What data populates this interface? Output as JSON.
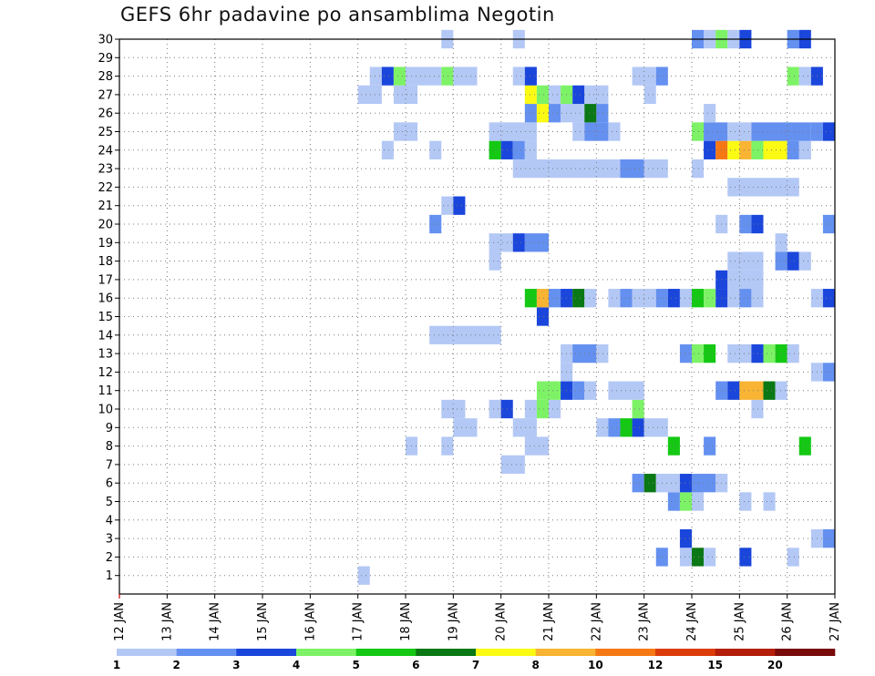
{
  "chart_data": {
    "type": "heatmap",
    "title": "GEFS 6hr padavine po ansamblima Negotin",
    "xlabel": "",
    "ylabel": "",
    "x_ticks": [
      "12 JAN",
      "13 JAN",
      "14 JAN",
      "15 JAN",
      "16 JAN",
      "17 JAN",
      "18 JAN",
      "19 JAN",
      "20 JAN",
      "21 JAN",
      "22 JAN",
      "23 JAN",
      "24 JAN",
      "25 JAN",
      "26 JAN",
      "27 JAN"
    ],
    "y_ticks": [
      "1",
      "2",
      "3",
      "4",
      "5",
      "6",
      "7",
      "8",
      "9",
      "10",
      "11",
      "12",
      "13",
      "14",
      "15",
      "16",
      "17",
      "18",
      "19",
      "20",
      "21",
      "22",
      "23",
      "24",
      "25",
      "26",
      "27",
      "28",
      "29",
      "30"
    ],
    "xlim": [
      12,
      27
    ],
    "ylim": [
      0,
      30
    ],
    "grid": true,
    "legend": {
      "placement": "bottom",
      "labels": [
        "1",
        "2",
        "3",
        "4",
        "5",
        "6",
        "7",
        "8",
        "10",
        "12",
        "15",
        "20"
      ],
      "colors": [
        "#b3c8f5",
        "#6490f0",
        "#1a46dc",
        "#7df266",
        "#14c814",
        "#0a7814",
        "#fafa14",
        "#f8b432",
        "#f57814",
        "#dc3c0a",
        "#b41e0a",
        "#780a0a"
      ]
    },
    "cells": [
      {
        "m": 1,
        "t": 17.0,
        "d": 0.25,
        "c": 1
      },
      {
        "m": 2,
        "t": 23.25,
        "d": 0.25,
        "c": 2
      },
      {
        "m": 2,
        "t": 23.75,
        "d": 0.25,
        "c": 1
      },
      {
        "m": 2,
        "t": 24.0,
        "d": 0.25,
        "c": 6
      },
      {
        "m": 2,
        "t": 24.25,
        "d": 0.25,
        "c": 1
      },
      {
        "m": 2,
        "t": 25.0,
        "d": 0.25,
        "c": 3
      },
      {
        "m": 2,
        "t": 26.0,
        "d": 0.25,
        "c": 1
      },
      {
        "m": 3,
        "t": 23.75,
        "d": 0.25,
        "c": 3
      },
      {
        "m": 3,
        "t": 26.5,
        "d": 0.25,
        "c": 1
      },
      {
        "m": 3,
        "t": 26.75,
        "d": 0.25,
        "c": 2
      },
      {
        "m": 5,
        "t": 23.5,
        "d": 0.25,
        "c": 2
      },
      {
        "m": 5,
        "t": 23.75,
        "d": 0.25,
        "c": 4
      },
      {
        "m": 5,
        "t": 24.0,
        "d": 0.25,
        "c": 1
      },
      {
        "m": 5,
        "t": 25.0,
        "d": 0.25,
        "c": 1
      },
      {
        "m": 5,
        "t": 25.5,
        "d": 0.25,
        "c": 1
      },
      {
        "m": 6,
        "t": 22.75,
        "d": 0.25,
        "c": 2
      },
      {
        "m": 6,
        "t": 23.0,
        "d": 0.25,
        "c": 6
      },
      {
        "m": 6,
        "t": 23.25,
        "d": 0.5,
        "c": 1
      },
      {
        "m": 6,
        "t": 23.75,
        "d": 0.25,
        "c": 3
      },
      {
        "m": 6,
        "t": 24.0,
        "d": 0.5,
        "c": 2
      },
      {
        "m": 6,
        "t": 24.5,
        "d": 0.25,
        "c": 1
      },
      {
        "m": 7,
        "t": 20.0,
        "d": 0.5,
        "c": 1
      },
      {
        "m": 8,
        "t": 18.0,
        "d": 0.25,
        "c": 1
      },
      {
        "m": 8,
        "t": 18.75,
        "d": 0.25,
        "c": 1
      },
      {
        "m": 8,
        "t": 20.5,
        "d": 0.5,
        "c": 1
      },
      {
        "m": 8,
        "t": 23.5,
        "d": 0.25,
        "c": 5
      },
      {
        "m": 8,
        "t": 24.25,
        "d": 0.25,
        "c": 2
      },
      {
        "m": 8,
        "t": 26.25,
        "d": 0.25,
        "c": 5
      },
      {
        "m": 9,
        "t": 19.0,
        "d": 0.5,
        "c": 1
      },
      {
        "m": 9,
        "t": 20.25,
        "d": 0.5,
        "c": 1
      },
      {
        "m": 9,
        "t": 22.0,
        "d": 0.25,
        "c": 1
      },
      {
        "m": 9,
        "t": 22.25,
        "d": 0.25,
        "c": 2
      },
      {
        "m": 9,
        "t": 22.5,
        "d": 0.25,
        "c": 5
      },
      {
        "m": 9,
        "t": 22.75,
        "d": 0.25,
        "c": 3
      },
      {
        "m": 9,
        "t": 23.0,
        "d": 0.5,
        "c": 1
      },
      {
        "m": 10,
        "t": 18.75,
        "d": 0.5,
        "c": 1
      },
      {
        "m": 10,
        "t": 19.75,
        "d": 0.25,
        "c": 1
      },
      {
        "m": 10,
        "t": 20.0,
        "d": 0.25,
        "c": 3
      },
      {
        "m": 10,
        "t": 20.5,
        "d": 0.25,
        "c": 1
      },
      {
        "m": 10,
        "t": 20.75,
        "d": 0.25,
        "c": 4
      },
      {
        "m": 10,
        "t": 21.0,
        "d": 0.25,
        "c": 1
      },
      {
        "m": 10,
        "t": 22.75,
        "d": 0.25,
        "c": 4
      },
      {
        "m": 10,
        "t": 25.25,
        "d": 0.25,
        "c": 1
      },
      {
        "m": 11,
        "t": 20.75,
        "d": 0.5,
        "c": 4
      },
      {
        "m": 11,
        "t": 21.25,
        "d": 0.25,
        "c": 3
      },
      {
        "m": 11,
        "t": 21.5,
        "d": 0.25,
        "c": 2
      },
      {
        "m": 11,
        "t": 21.75,
        "d": 0.25,
        "c": 1
      },
      {
        "m": 11,
        "t": 22.25,
        "d": 0.75,
        "c": 1
      },
      {
        "m": 11,
        "t": 24.5,
        "d": 0.25,
        "c": 2
      },
      {
        "m": 11,
        "t": 24.75,
        "d": 0.25,
        "c": 3
      },
      {
        "m": 11,
        "t": 25.0,
        "d": 0.5,
        "c": 8
      },
      {
        "m": 11,
        "t": 25.5,
        "d": 0.25,
        "c": 6
      },
      {
        "m": 11,
        "t": 25.75,
        "d": 0.25,
        "c": 1
      },
      {
        "m": 12,
        "t": 21.25,
        "d": 0.25,
        "c": 1
      },
      {
        "m": 12,
        "t": 26.5,
        "d": 0.25,
        "c": 1
      },
      {
        "m": 12,
        "t": 26.75,
        "d": 0.25,
        "c": 2
      },
      {
        "m": 13,
        "t": 21.25,
        "d": 0.25,
        "c": 1
      },
      {
        "m": 13,
        "t": 21.5,
        "d": 0.5,
        "c": 2
      },
      {
        "m": 13,
        "t": 22.0,
        "d": 0.25,
        "c": 1
      },
      {
        "m": 13,
        "t": 23.75,
        "d": 0.25,
        "c": 2
      },
      {
        "m": 13,
        "t": 24.0,
        "d": 0.25,
        "c": 4
      },
      {
        "m": 13,
        "t": 24.25,
        "d": 0.25,
        "c": 5
      },
      {
        "m": 13,
        "t": 24.75,
        "d": 0.5,
        "c": 1
      },
      {
        "m": 13,
        "t": 25.25,
        "d": 0.25,
        "c": 3
      },
      {
        "m": 13,
        "t": 25.5,
        "d": 0.25,
        "c": 4
      },
      {
        "m": 13,
        "t": 25.75,
        "d": 0.25,
        "c": 5
      },
      {
        "m": 13,
        "t": 26.0,
        "d": 0.25,
        "c": 1
      },
      {
        "m": 14,
        "t": 18.5,
        "d": 1.5,
        "c": 1
      },
      {
        "m": 15,
        "t": 20.75,
        "d": 0.25,
        "c": 3
      },
      {
        "m": 16,
        "t": 20.5,
        "d": 0.25,
        "c": 5
      },
      {
        "m": 16,
        "t": 20.75,
        "d": 0.25,
        "c": 8
      },
      {
        "m": 16,
        "t": 21.0,
        "d": 0.25,
        "c": 2
      },
      {
        "m": 16,
        "t": 21.25,
        "d": 0.25,
        "c": 3
      },
      {
        "m": 16,
        "t": 21.5,
        "d": 0.25,
        "c": 6
      },
      {
        "m": 16,
        "t": 21.75,
        "d": 0.25,
        "c": 1
      },
      {
        "m": 16,
        "t": 22.25,
        "d": 0.25,
        "c": 1
      },
      {
        "m": 16,
        "t": 22.5,
        "d": 0.25,
        "c": 2
      },
      {
        "m": 16,
        "t": 22.75,
        "d": 0.5,
        "c": 1
      },
      {
        "m": 16,
        "t": 23.25,
        "d": 0.25,
        "c": 2
      },
      {
        "m": 16,
        "t": 23.5,
        "d": 0.25,
        "c": 3
      },
      {
        "m": 16,
        "t": 23.75,
        "d": 0.25,
        "c": 1
      },
      {
        "m": 16,
        "t": 24.0,
        "d": 0.25,
        "c": 5
      },
      {
        "m": 16,
        "t": 24.25,
        "d": 0.25,
        "c": 4
      },
      {
        "m": 16,
        "t": 24.5,
        "d": 0.25,
        "c": 3
      },
      {
        "m": 16,
        "t": 24.75,
        "d": 0.25,
        "c": 1
      },
      {
        "m": 16,
        "t": 25.0,
        "d": 0.25,
        "c": 2
      },
      {
        "m": 16,
        "t": 25.25,
        "d": 0.25,
        "c": 1
      },
      {
        "m": 16,
        "t": 26.5,
        "d": 0.25,
        "c": 1
      },
      {
        "m": 16,
        "t": 26.75,
        "d": 0.25,
        "c": 3
      },
      {
        "m": 17,
        "t": 24.5,
        "d": 0.25,
        "c": 3
      },
      {
        "m": 17,
        "t": 24.75,
        "d": 0.75,
        "c": 1
      },
      {
        "m": 18,
        "t": 19.75,
        "d": 0.25,
        "c": 1
      },
      {
        "m": 18,
        "t": 24.75,
        "d": 0.75,
        "c": 1
      },
      {
        "m": 18,
        "t": 25.75,
        "d": 0.25,
        "c": 2
      },
      {
        "m": 18,
        "t": 26.0,
        "d": 0.25,
        "c": 3
      },
      {
        "m": 18,
        "t": 26.25,
        "d": 0.25,
        "c": 1
      },
      {
        "m": 19,
        "t": 19.75,
        "d": 0.5,
        "c": 1
      },
      {
        "m": 19,
        "t": 20.25,
        "d": 0.25,
        "c": 3
      },
      {
        "m": 19,
        "t": 20.5,
        "d": 0.5,
        "c": 2
      },
      {
        "m": 19,
        "t": 25.75,
        "d": 0.25,
        "c": 1
      },
      {
        "m": 20,
        "t": 18.5,
        "d": 0.25,
        "c": 2
      },
      {
        "m": 20,
        "t": 24.5,
        "d": 0.25,
        "c": 1
      },
      {
        "m": 20,
        "t": 25.0,
        "d": 0.25,
        "c": 2
      },
      {
        "m": 20,
        "t": 25.25,
        "d": 0.25,
        "c": 3
      },
      {
        "m": 20,
        "t": 26.75,
        "d": 0.25,
        "c": 2
      },
      {
        "m": 21,
        "t": 18.75,
        "d": 0.25,
        "c": 1
      },
      {
        "m": 21,
        "t": 19.0,
        "d": 0.25,
        "c": 3
      },
      {
        "m": 22,
        "t": 24.75,
        "d": 1.5,
        "c": 1
      },
      {
        "m": 23,
        "t": 20.25,
        "d": 2.25,
        "c": 1
      },
      {
        "m": 23,
        "t": 22.5,
        "d": 0.5,
        "c": 2
      },
      {
        "m": 23,
        "t": 23.0,
        "d": 0.5,
        "c": 1
      },
      {
        "m": 23,
        "t": 24.0,
        "d": 0.25,
        "c": 1
      },
      {
        "m": 24,
        "t": 17.5,
        "d": 0.25,
        "c": 1
      },
      {
        "m": 24,
        "t": 18.5,
        "d": 0.25,
        "c": 1
      },
      {
        "m": 24,
        "t": 19.75,
        "d": 0.25,
        "c": 5
      },
      {
        "m": 24,
        "t": 20.0,
        "d": 0.25,
        "c": 3
      },
      {
        "m": 24,
        "t": 20.25,
        "d": 0.25,
        "c": 2
      },
      {
        "m": 24,
        "t": 20.5,
        "d": 0.25,
        "c": 1
      },
      {
        "m": 24,
        "t": 24.25,
        "d": 0.25,
        "c": 3
      },
      {
        "m": 24,
        "t": 24.5,
        "d": 0.25,
        "c": 9
      },
      {
        "m": 24,
        "t": 24.75,
        "d": 0.25,
        "c": 7
      },
      {
        "m": 24,
        "t": 25.0,
        "d": 0.25,
        "c": 8
      },
      {
        "m": 24,
        "t": 25.25,
        "d": 0.25,
        "c": 4
      },
      {
        "m": 24,
        "t": 25.5,
        "d": 0.5,
        "c": 7
      },
      {
        "m": 24,
        "t": 26.0,
        "d": 0.25,
        "c": 2
      },
      {
        "m": 24,
        "t": 26.25,
        "d": 0.25,
        "c": 1
      },
      {
        "m": 25,
        "t": 17.75,
        "d": 0.5,
        "c": 1
      },
      {
        "m": 25,
        "t": 19.75,
        "d": 1.0,
        "c": 1
      },
      {
        "m": 25,
        "t": 21.5,
        "d": 0.25,
        "c": 1
      },
      {
        "m": 25,
        "t": 21.75,
        "d": 0.5,
        "c": 2
      },
      {
        "m": 25,
        "t": 22.25,
        "d": 0.25,
        "c": 1
      },
      {
        "m": 25,
        "t": 24.0,
        "d": 0.25,
        "c": 4
      },
      {
        "m": 25,
        "t": 24.25,
        "d": 0.5,
        "c": 2
      },
      {
        "m": 25,
        "t": 24.75,
        "d": 0.5,
        "c": 1
      },
      {
        "m": 25,
        "t": 25.25,
        "d": 1.25,
        "c": 2
      },
      {
        "m": 25,
        "t": 26.5,
        "d": 0.25,
        "c": 2
      },
      {
        "m": 25,
        "t": 26.75,
        "d": 0.25,
        "c": 3
      },
      {
        "m": 26,
        "t": 20.5,
        "d": 0.25,
        "c": 2
      },
      {
        "m": 26,
        "t": 20.75,
        "d": 0.25,
        "c": 7
      },
      {
        "m": 26,
        "t": 21.0,
        "d": 0.25,
        "c": 2
      },
      {
        "m": 26,
        "t": 21.25,
        "d": 0.5,
        "c": 1
      },
      {
        "m": 26,
        "t": 21.75,
        "d": 0.25,
        "c": 6
      },
      {
        "m": 26,
        "t": 22.0,
        "d": 0.25,
        "c": 2
      },
      {
        "m": 26,
        "t": 24.25,
        "d": 0.25,
        "c": 1
      },
      {
        "m": 27,
        "t": 17.0,
        "d": 0.5,
        "c": 1
      },
      {
        "m": 27,
        "t": 17.75,
        "d": 0.5,
        "c": 1
      },
      {
        "m": 27,
        "t": 20.5,
        "d": 0.25,
        "c": 7
      },
      {
        "m": 27,
        "t": 20.75,
        "d": 0.25,
        "c": 4
      },
      {
        "m": 27,
        "t": 21.0,
        "d": 0.25,
        "c": 1
      },
      {
        "m": 27,
        "t": 21.25,
        "d": 0.25,
        "c": 4
      },
      {
        "m": 27,
        "t": 21.5,
        "d": 0.25,
        "c": 3
      },
      {
        "m": 27,
        "t": 21.75,
        "d": 0.5,
        "c": 1
      },
      {
        "m": 27,
        "t": 23.0,
        "d": 0.25,
        "c": 1
      },
      {
        "m": 28,
        "t": 17.25,
        "d": 0.25,
        "c": 1
      },
      {
        "m": 28,
        "t": 17.5,
        "d": 0.25,
        "c": 3
      },
      {
        "m": 28,
        "t": 17.75,
        "d": 0.25,
        "c": 4
      },
      {
        "m": 28,
        "t": 18.0,
        "d": 0.75,
        "c": 1
      },
      {
        "m": 28,
        "t": 18.75,
        "d": 0.25,
        "c": 4
      },
      {
        "m": 28,
        "t": 19.0,
        "d": 0.5,
        "c": 1
      },
      {
        "m": 28,
        "t": 20.25,
        "d": 0.25,
        "c": 1
      },
      {
        "m": 28,
        "t": 20.5,
        "d": 0.25,
        "c": 3
      },
      {
        "m": 28,
        "t": 22.75,
        "d": 0.5,
        "c": 1
      },
      {
        "m": 28,
        "t": 23.25,
        "d": 0.25,
        "c": 2
      },
      {
        "m": 28,
        "t": 26.0,
        "d": 0.25,
        "c": 4
      },
      {
        "m": 28,
        "t": 26.25,
        "d": 0.25,
        "c": 1
      },
      {
        "m": 28,
        "t": 26.5,
        "d": 0.25,
        "c": 3
      },
      {
        "m": 30,
        "t": 18.75,
        "d": 0.25,
        "c": 1
      },
      {
        "m": 30,
        "t": 20.25,
        "d": 0.25,
        "c": 1
      },
      {
        "m": 30,
        "t": 24.0,
        "d": 0.25,
        "c": 2
      },
      {
        "m": 30,
        "t": 24.25,
        "d": 0.25,
        "c": 1
      },
      {
        "m": 30,
        "t": 24.5,
        "d": 0.25,
        "c": 4
      },
      {
        "m": 30,
        "t": 24.75,
        "d": 0.25,
        "c": 1
      },
      {
        "m": 30,
        "t": 25.0,
        "d": 0.25,
        "c": 3
      },
      {
        "m": 30,
        "t": 26.0,
        "d": 0.25,
        "c": 2
      },
      {
        "m": 30,
        "t": 26.25,
        "d": 0.25,
        "c": 3
      }
    ]
  }
}
